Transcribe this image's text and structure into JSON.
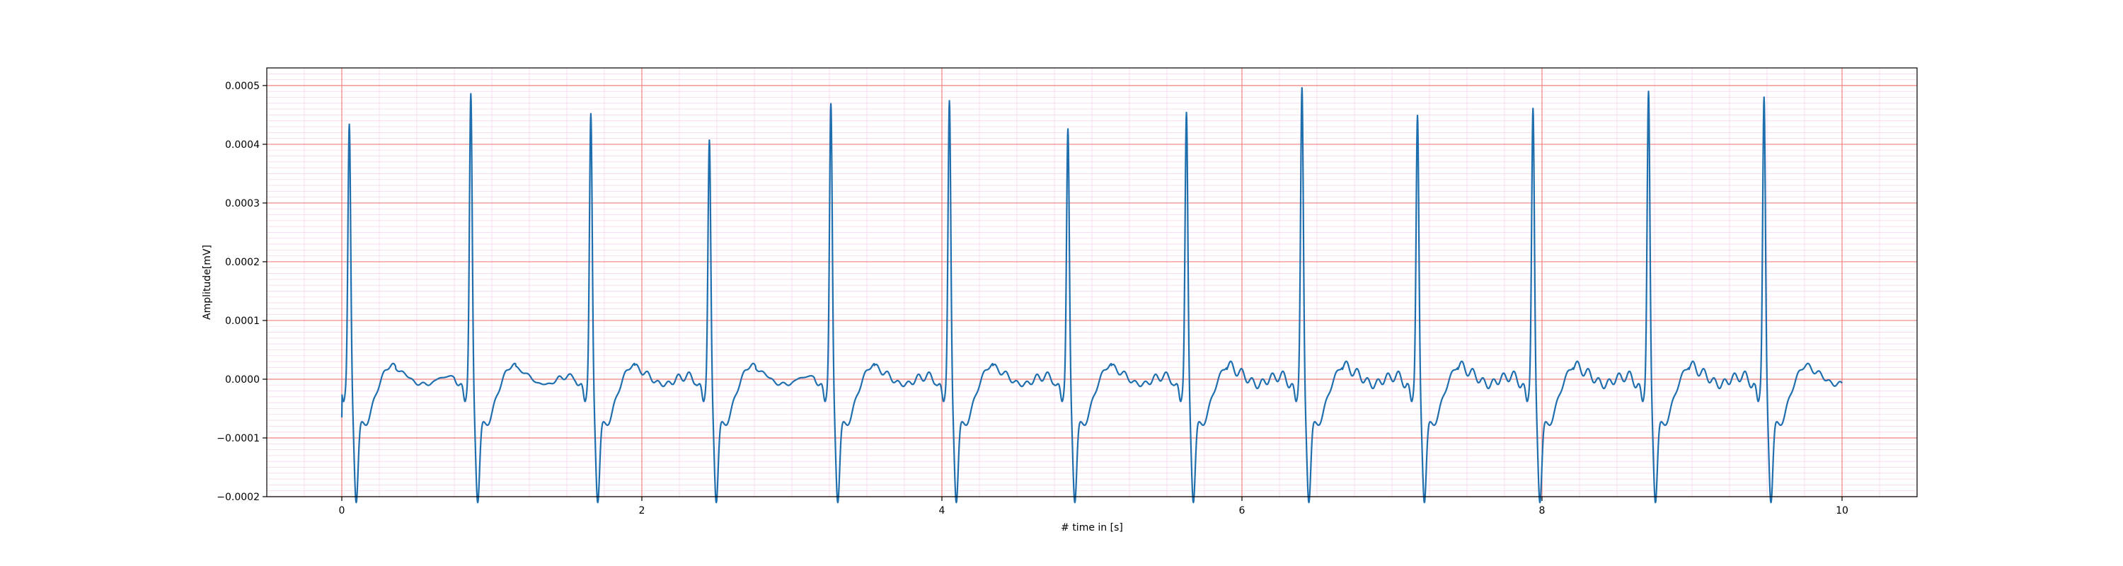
{
  "chart_data": {
    "type": "line",
    "title": "",
    "xlabel": "# time in [s]",
    "ylabel": "Amplitude[mV]",
    "xlim": [
      -0.5,
      10.5
    ],
    "ylim": [
      -0.0002,
      0.00053
    ],
    "x_ticks": [
      0,
      2,
      4,
      6,
      8,
      10
    ],
    "x_tick_labels": [
      "0",
      "2",
      "4",
      "6",
      "8",
      "10"
    ],
    "y_ticks": [
      -0.0002,
      -0.0001,
      0.0,
      0.0001,
      0.0002,
      0.0003,
      0.0004,
      0.0005
    ],
    "y_tick_labels": [
      "−0.0002",
      "−0.0001",
      "0.0000",
      "0.0001",
      "0.0002",
      "0.0003",
      "0.0004",
      "0.0005"
    ],
    "grid": {
      "major": true,
      "minor": true,
      "major_color": "#f08080",
      "minor_color": "#f6d6ee"
    },
    "line_color": "#1f6fae",
    "series": [
      {
        "beats": [
          {
            "t": 0.05,
            "peak": 0.000432
          },
          {
            "t": 0.86,
            "peak": 0.000484
          },
          {
            "t": 1.66,
            "peak": 0.00045
          },
          {
            "t": 2.45,
            "peak": 0.000405
          },
          {
            "t": 3.26,
            "peak": 0.000467
          },
          {
            "t": 4.05,
            "peak": 0.000472
          },
          {
            "t": 4.84,
            "peak": 0.000424
          },
          {
            "t": 5.63,
            "peak": 0.000452
          },
          {
            "t": 6.4,
            "peak": 0.000494
          },
          {
            "t": 7.17,
            "peak": 0.000447
          },
          {
            "t": 7.94,
            "peak": 0.000459
          },
          {
            "t": 8.71,
            "peak": 0.000488
          },
          {
            "t": 9.48,
            "peak": 0.000478
          }
        ]
      }
    ]
  }
}
